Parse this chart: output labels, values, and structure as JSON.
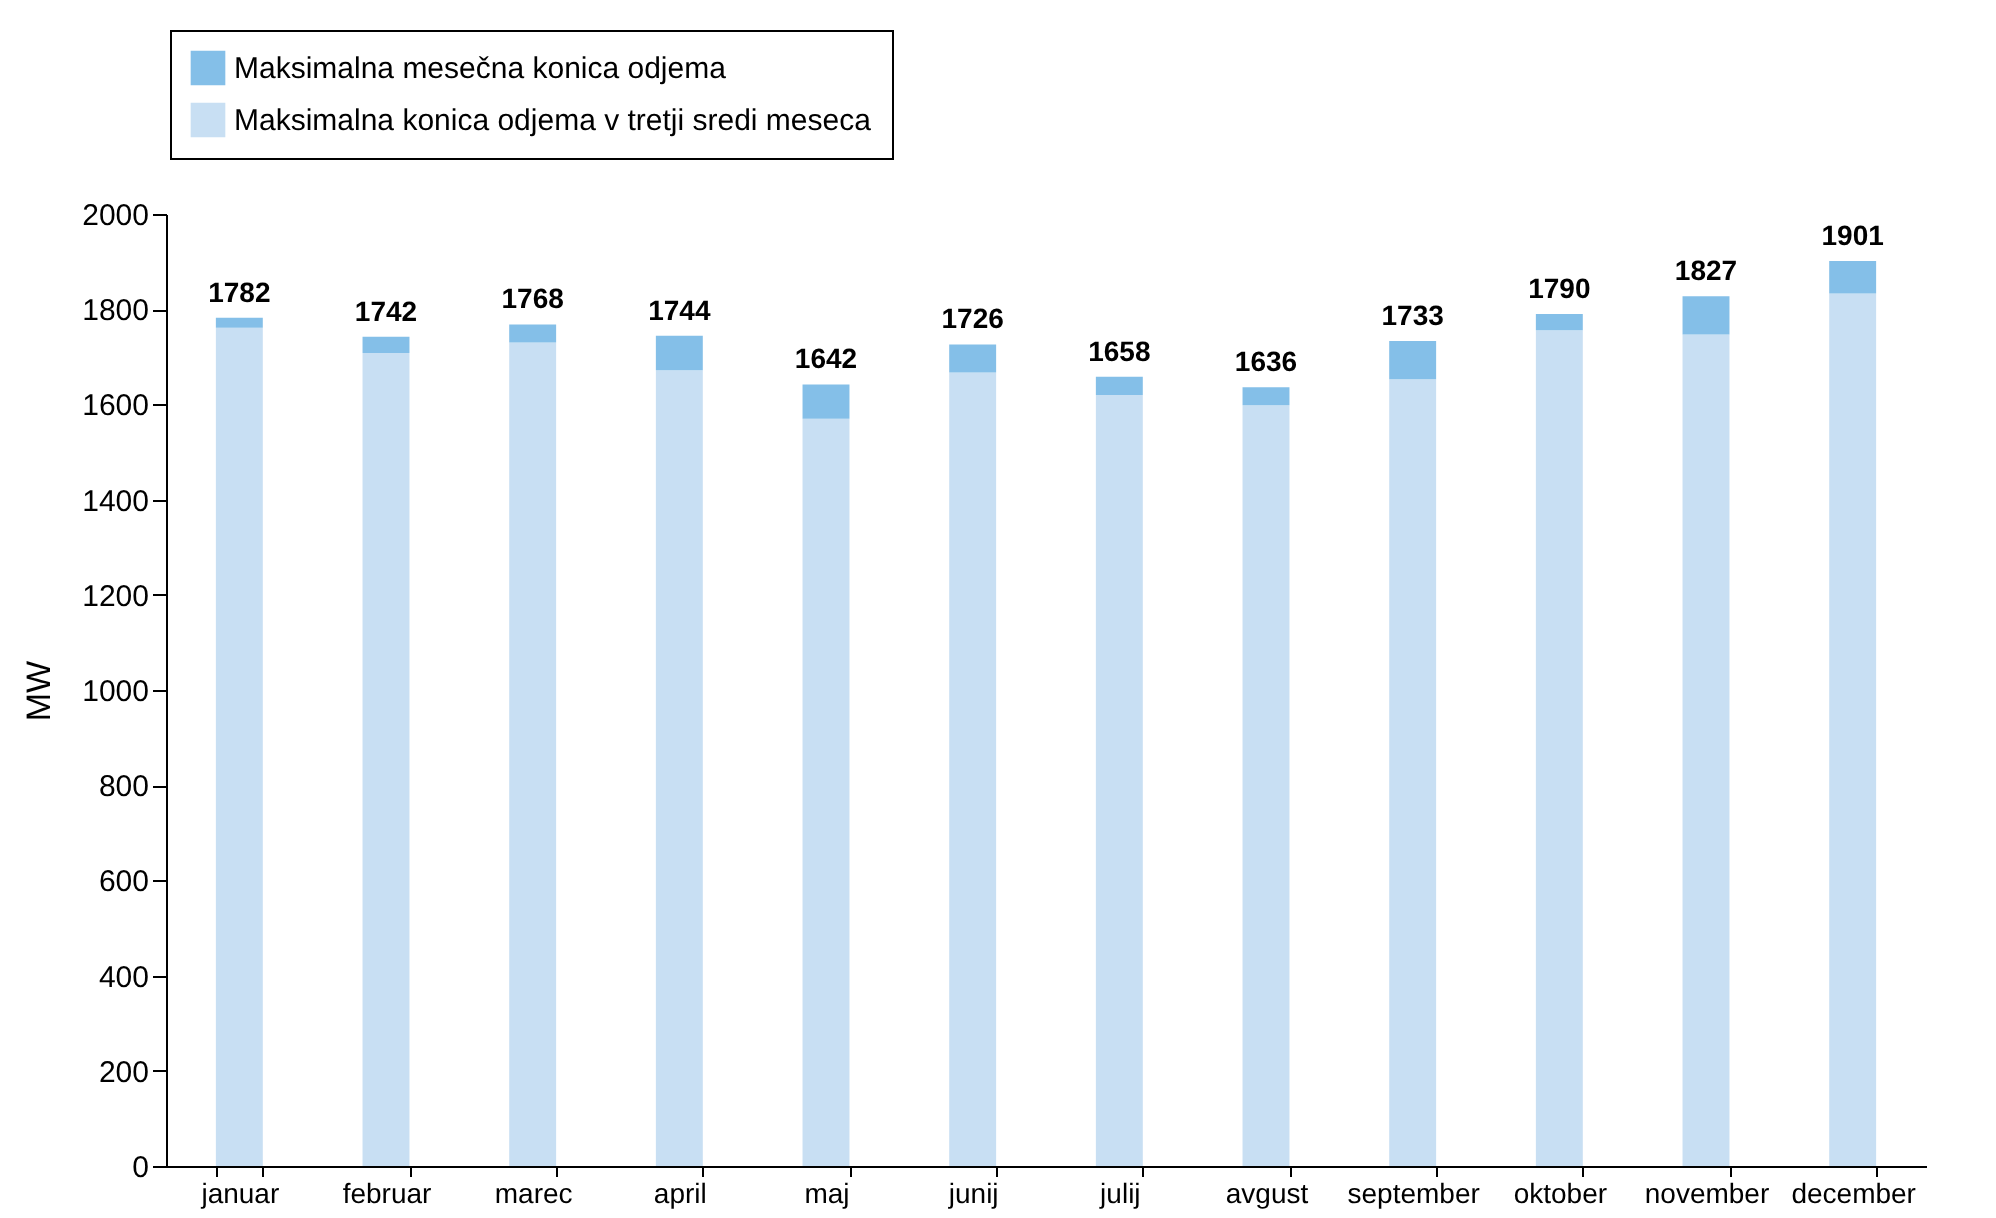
{
  "chart_data": {
    "type": "bar",
    "stacked": true,
    "ylabel": "MW",
    "categories": [
      "januar",
      "februar",
      "marec",
      "april",
      "maj",
      "junij",
      "julij",
      "avgust",
      "september",
      "oktober",
      "november",
      "december"
    ],
    "series": [
      {
        "name": "Maksimalna konica odjema v tretji sredi meseca",
        "color": "#c8dff3",
        "values": [
          1761,
          1708,
          1730,
          1672,
          1570,
          1667,
          1620,
          1598,
          1653,
          1756,
          1747,
          1833
        ]
      },
      {
        "name": "Maksimalna mesečna konica odjema",
        "color": "#84bfe8",
        "values": [
          21,
          34,
          38,
          72,
          72,
          59,
          38,
          38,
          80,
          34,
          80,
          68
        ]
      }
    ],
    "totals": [
      "1782",
      "1742",
      "1768",
      "1744",
      "1642",
      "1726",
      "1658",
      "1636",
      "1733",
      "1790",
      "1827",
      "1901"
    ],
    "ylim": [
      0,
      2000
    ],
    "yticks": [
      0,
      200,
      400,
      600,
      800,
      1000,
      1200,
      1400,
      1600,
      1800,
      2000
    ],
    "grid": false,
    "legend": "top left"
  }
}
